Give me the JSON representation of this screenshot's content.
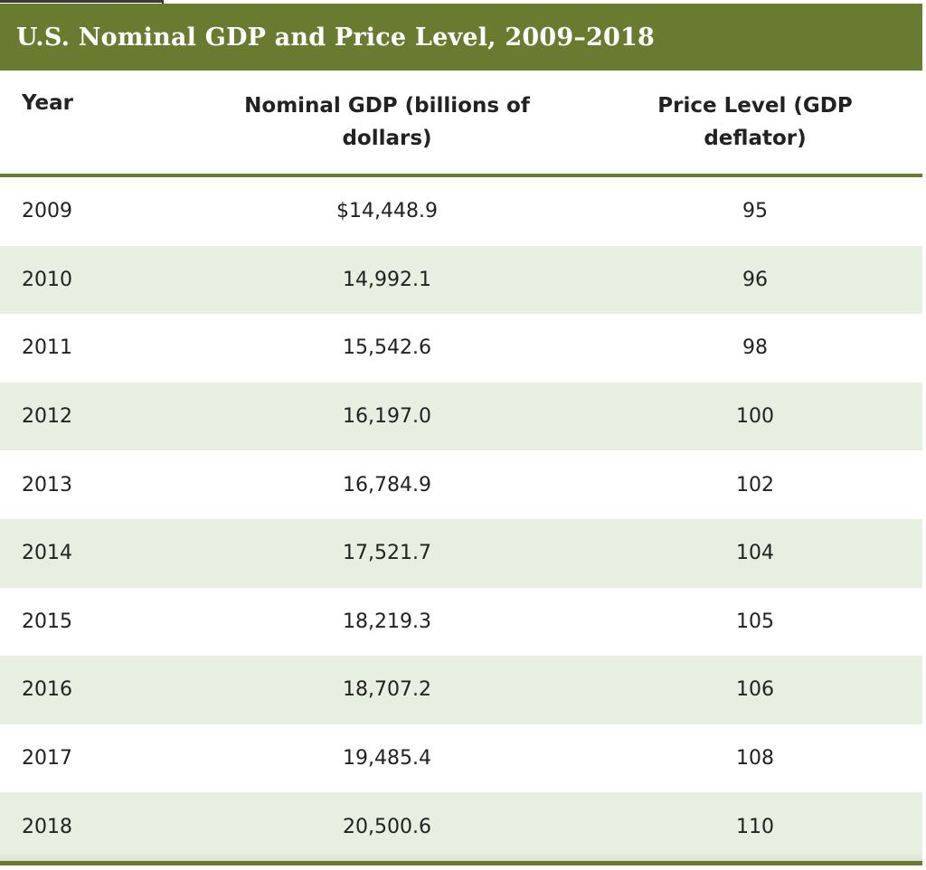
{
  "table": {
    "title": "U.S. Nominal GDP and Price Level, 2009–2018",
    "headers": {
      "year": "Year",
      "gdp_line1": "Nominal GDP (billions of",
      "gdp_line2": "dollars)",
      "price_line1": "Price Level (GDP",
      "price_line2": "deflator)"
    },
    "rows": [
      {
        "year": "2009",
        "gdp": "$14,448.9",
        "price": "95"
      },
      {
        "year": "2010",
        "gdp": "14,992.1",
        "price": "96"
      },
      {
        "year": "2011",
        "gdp": "15,542.6",
        "price": "98"
      },
      {
        "year": "2012",
        "gdp": "16,197.0",
        "price": "100"
      },
      {
        "year": "2013",
        "gdp": "16,784.9",
        "price": "102"
      },
      {
        "year": "2014",
        "gdp": "17,521.7",
        "price": "104"
      },
      {
        "year": "2015",
        "gdp": "18,219.3",
        "price": "105"
      },
      {
        "year": "2016",
        "gdp": "18,707.2",
        "price": "106"
      },
      {
        "year": "2017",
        "gdp": "19,485.4",
        "price": "108"
      },
      {
        "year": "2018",
        "gdp": "20,500.6",
        "price": "110"
      }
    ]
  },
  "colors": {
    "accent": "#687b2f",
    "row_shade": "#e6efe0",
    "text": "#222222"
  }
}
